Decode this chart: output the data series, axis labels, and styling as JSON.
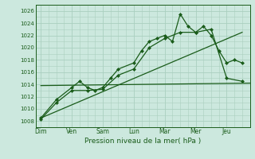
{
  "background_color": "#cce8de",
  "grid_color": "#aacfbf",
  "line_color": "#1a5c1a",
  "marker_color": "#1a5c1a",
  "xlabel": "Pression niveau de la mer( hPa )",
  "ylim": [
    1007,
    1027
  ],
  "yticks": [
    1008,
    1010,
    1012,
    1014,
    1016,
    1018,
    1020,
    1022,
    1024,
    1026
  ],
  "day_labels": [
    "Dim",
    "Ven",
    "Sam",
    "Lun",
    "Mar",
    "Mer",
    "Jeu"
  ],
  "day_positions": [
    0,
    24,
    48,
    72,
    96,
    120,
    144
  ],
  "xlim_min": -4,
  "xlim_max": 162,
  "series1_x": [
    0,
    12,
    24,
    30,
    36,
    42,
    48,
    54,
    60,
    72,
    78,
    84,
    90,
    96,
    102,
    108,
    114,
    120,
    126,
    132,
    138,
    144,
    150,
    156
  ],
  "series1_y": [
    1008.5,
    1011.5,
    1013.5,
    1014.5,
    1013.5,
    1013.0,
    1013.5,
    1015.0,
    1016.5,
    1017.5,
    1019.5,
    1021.0,
    1021.5,
    1022.0,
    1021.0,
    1025.5,
    1023.5,
    1022.5,
    1023.5,
    1022.0,
    1019.5,
    1017.5,
    1018.0,
    1017.5
  ],
  "series2_x": [
    0,
    12,
    24,
    36,
    48,
    60,
    72,
    84,
    96,
    108,
    120,
    132,
    144,
    156
  ],
  "series2_y": [
    1008.3,
    1011.0,
    1013.0,
    1013.0,
    1013.2,
    1015.5,
    1016.5,
    1020.0,
    1021.5,
    1022.5,
    1022.5,
    1023.0,
    1015.0,
    1014.5
  ],
  "trend1_x": [
    0,
    156
  ],
  "trend1_y": [
    1008.5,
    1022.5
  ],
  "trend2_x": [
    0,
    162
  ],
  "trend2_y": [
    1013.8,
    1014.2
  ]
}
